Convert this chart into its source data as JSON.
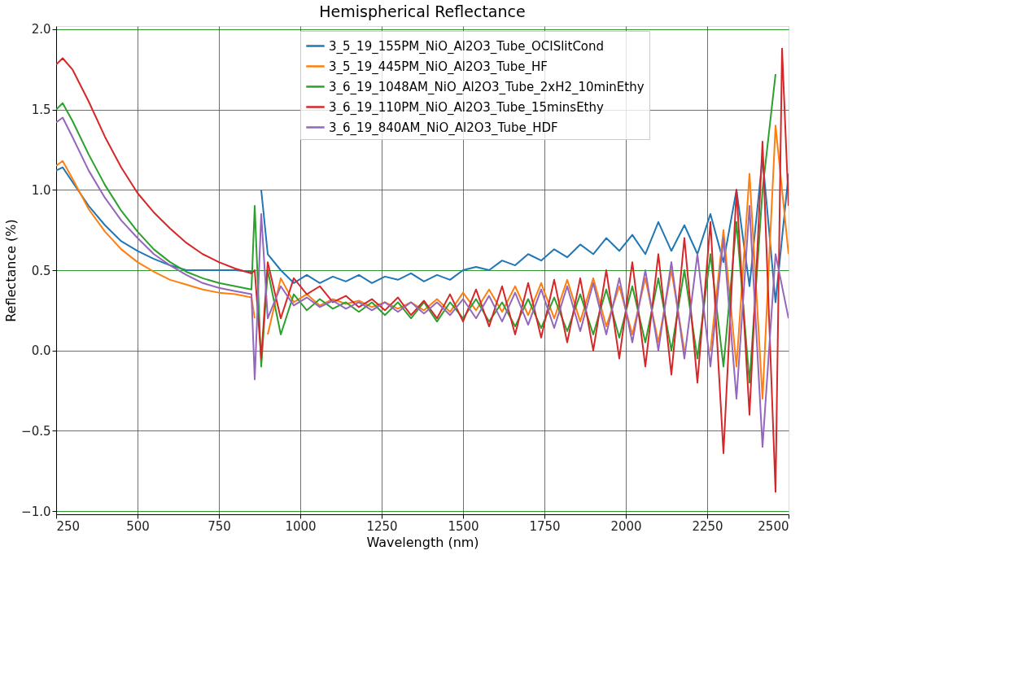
{
  "chart_data": {
    "type": "line",
    "title": "Hemispherical Reflectance",
    "xlabel": "Wavelength (nm)",
    "ylabel": "Reflectance (%)",
    "xlim": [
      250,
      2500
    ],
    "xticks": [
      250,
      500,
      750,
      1000,
      1250,
      1500,
      1750,
      2000,
      2250,
      2500
    ],
    "ylim": [
      -1.02,
      2.02
    ],
    "yticks": [
      {
        "value": -1.0,
        "label": "−1.0"
      },
      {
        "value": -0.5,
        "label": "−0.5"
      },
      {
        "value": 0.0,
        "label": "0.0"
      },
      {
        "value": 0.5,
        "label": "0.5"
      },
      {
        "value": 1.0,
        "label": "1.0"
      },
      {
        "value": 1.5,
        "label": "1.5"
      },
      {
        "value": 2.0,
        "label": "2.0"
      }
    ],
    "grid": true,
    "legend": "top",
    "line_style": "solid",
    "marker": "none",
    "series": [
      {
        "name": "3_5_19_155PM_NiO_Al2O3_Tube_OCISlitCond",
        "color": "#1f77b4",
        "x": [
          250,
          270,
          300,
          350,
          400,
          450,
          500,
          550,
          600,
          650,
          700,
          750,
          800,
          850,
          860,
          880,
          900,
          940,
          980,
          1020,
          1060,
          1100,
          1140,
          1180,
          1220,
          1260,
          1300,
          1340,
          1380,
          1420,
          1460,
          1500,
          1540,
          1580,
          1620,
          1660,
          1700,
          1740,
          1780,
          1820,
          1860,
          1900,
          1940,
          1980,
          2020,
          2060,
          2100,
          2140,
          2180,
          2220,
          2260,
          2300,
          2340,
          2380,
          2420,
          2460,
          2500
        ],
        "values": [
          1.12,
          1.14,
          1.05,
          0.9,
          0.78,
          0.68,
          0.62,
          0.57,
          0.53,
          0.5,
          0.5,
          0.5,
          0.5,
          0.49,
          null,
          1.0,
          0.6,
          0.5,
          0.42,
          0.47,
          0.42,
          0.46,
          0.43,
          0.47,
          0.42,
          0.46,
          0.44,
          0.48,
          0.43,
          0.47,
          0.44,
          0.5,
          0.52,
          0.5,
          0.56,
          0.53,
          0.6,
          0.56,
          0.63,
          0.58,
          0.66,
          0.6,
          0.7,
          0.62,
          0.72,
          0.6,
          0.8,
          0.62,
          0.78,
          0.6,
          0.85,
          0.55,
          1.0,
          0.4,
          1.2,
          0.3,
          1.1
        ]
      },
      {
        "name": "3_5_19_445PM_NiO_Al2O3_Tube_HF",
        "color": "#ff7f0e",
        "x": [
          250,
          270,
          300,
          350,
          400,
          450,
          500,
          550,
          600,
          650,
          700,
          750,
          800,
          850,
          860,
          880,
          900,
          940,
          980,
          1020,
          1060,
          1100,
          1140,
          1180,
          1220,
          1260,
          1300,
          1340,
          1380,
          1420,
          1460,
          1500,
          1540,
          1580,
          1620,
          1660,
          1700,
          1740,
          1780,
          1820,
          1860,
          1900,
          1940,
          1980,
          2020,
          2060,
          2100,
          2140,
          2180,
          2220,
          2260,
          2300,
          2340,
          2380,
          2420,
          2460,
          2500
        ],
        "values": [
          1.15,
          1.18,
          1.07,
          0.88,
          0.74,
          0.63,
          0.55,
          0.49,
          0.44,
          0.41,
          0.38,
          0.36,
          0.35,
          0.33,
          0.2,
          null,
          0.1,
          0.45,
          0.3,
          0.35,
          0.28,
          0.32,
          0.29,
          0.31,
          0.27,
          0.3,
          0.26,
          0.3,
          0.25,
          0.32,
          0.24,
          0.36,
          0.25,
          0.38,
          0.24,
          0.4,
          0.22,
          0.42,
          0.2,
          0.44,
          0.18,
          0.45,
          0.15,
          0.4,
          0.1,
          0.45,
          0.05,
          0.5,
          0.0,
          null,
          0.0,
          0.75,
          -0.1,
          1.1,
          -0.3,
          1.4,
          0.6
        ]
      },
      {
        "name": "3_6_19_1048AM_NiO_Al2O3_Tube_2xH2_10minEthy",
        "color": "#2ca02c",
        "x": [
          250,
          270,
          300,
          350,
          400,
          450,
          500,
          550,
          600,
          650,
          700,
          750,
          800,
          850,
          860,
          880,
          900,
          940,
          980,
          1020,
          1060,
          1100,
          1140,
          1180,
          1220,
          1260,
          1300,
          1340,
          1380,
          1420,
          1460,
          1500,
          1540,
          1580,
          1620,
          1660,
          1700,
          1740,
          1780,
          1820,
          1860,
          1900,
          1940,
          1980,
          2020,
          2060,
          2100,
          2140,
          2180,
          2220,
          2260,
          2300,
          2340,
          2380,
          2420,
          2460
        ],
        "values": [
          1.5,
          1.54,
          1.43,
          1.22,
          1.03,
          0.87,
          0.74,
          0.63,
          0.55,
          0.49,
          0.45,
          0.42,
          0.4,
          0.38,
          0.9,
          -0.1,
          0.5,
          0.1,
          0.35,
          0.25,
          0.32,
          0.26,
          0.3,
          0.24,
          0.3,
          0.22,
          0.3,
          0.2,
          0.3,
          0.18,
          0.3,
          0.2,
          0.32,
          0.18,
          0.3,
          0.15,
          0.32,
          0.14,
          0.33,
          0.12,
          0.35,
          0.1,
          0.38,
          0.08,
          0.4,
          0.05,
          0.45,
          0.0,
          0.5,
          -0.05,
          0.6,
          -0.1,
          0.8,
          -0.2,
          1.0,
          1.72
        ]
      },
      {
        "name": "3_6_19_110PM_NiO_Al2O3_Tube_15minsEthy",
        "color": "#d62728",
        "x": [
          250,
          270,
          300,
          350,
          400,
          450,
          500,
          550,
          600,
          650,
          700,
          750,
          800,
          850,
          860,
          880,
          900,
          940,
          980,
          1020,
          1060,
          1100,
          1140,
          1180,
          1220,
          1260,
          1300,
          1340,
          1380,
          1420,
          1460,
          1500,
          1540,
          1580,
          1620,
          1660,
          1700,
          1740,
          1780,
          1820,
          1860,
          1900,
          1940,
          1980,
          2020,
          2060,
          2100,
          2140,
          2180,
          2220,
          2260,
          2300,
          2340,
          2380,
          2420,
          2460,
          2480,
          2500
        ],
        "values": [
          1.78,
          1.82,
          1.75,
          1.55,
          1.33,
          1.14,
          0.98,
          0.86,
          0.76,
          0.67,
          0.6,
          0.55,
          0.51,
          0.48,
          0.5,
          -0.05,
          0.55,
          0.2,
          0.45,
          0.35,
          0.4,
          0.3,
          0.34,
          0.27,
          0.32,
          0.25,
          0.33,
          0.22,
          0.31,
          0.2,
          0.35,
          0.18,
          0.38,
          0.15,
          0.4,
          0.1,
          0.42,
          0.08,
          0.44,
          0.05,
          0.45,
          0.0,
          0.5,
          -0.05,
          0.55,
          -0.1,
          0.6,
          -0.15,
          0.7,
          -0.2,
          0.8,
          -0.64,
          1.0,
          -0.4,
          1.3,
          -0.88,
          1.88,
          0.9
        ]
      },
      {
        "name": "3_6_19_840AM_NiO_Al2O3_Tube_HDF",
        "color": "#9467bd",
        "x": [
          250,
          270,
          300,
          350,
          400,
          450,
          500,
          550,
          600,
          650,
          700,
          750,
          800,
          850,
          860,
          880,
          900,
          940,
          980,
          1020,
          1060,
          1100,
          1140,
          1180,
          1220,
          1260,
          1300,
          1340,
          1380,
          1420,
          1460,
          1500,
          1540,
          1580,
          1620,
          1660,
          1700,
          1740,
          1780,
          1820,
          1860,
          1900,
          1940,
          1980,
          2020,
          2060,
          2100,
          2140,
          2180,
          2220,
          2260,
          2300,
          2340,
          2380,
          2420,
          2460,
          2500
        ],
        "values": [
          1.42,
          1.45,
          1.33,
          1.12,
          0.95,
          0.81,
          0.7,
          0.6,
          0.53,
          0.47,
          0.42,
          0.39,
          0.37,
          0.35,
          -0.18,
          0.85,
          0.2,
          0.4,
          0.28,
          0.33,
          0.27,
          0.31,
          0.26,
          0.3,
          0.25,
          0.3,
          0.24,
          0.3,
          0.23,
          0.3,
          0.22,
          0.32,
          0.2,
          0.34,
          0.18,
          0.36,
          0.16,
          0.38,
          0.14,
          0.4,
          0.12,
          0.42,
          0.1,
          0.45,
          0.05,
          0.5,
          0.0,
          0.55,
          -0.05,
          0.6,
          -0.1,
          0.7,
          -0.3,
          0.9,
          -0.6,
          0.6,
          0.2
        ]
      }
    ]
  }
}
